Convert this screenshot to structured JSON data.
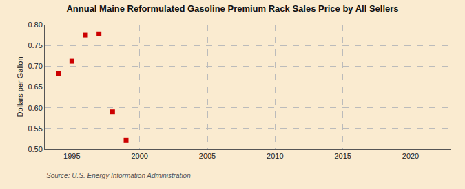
{
  "chart_data": {
    "type": "scatter",
    "title": "Annual Maine Reformulated Gasoline Premium Rack Sales Price by All Sellers",
    "ylabel": "Dollars per Gallon",
    "annotations": [
      "Source: U.S. Energy Information Administration"
    ],
    "x": [
      1994,
      1995,
      1996,
      1997,
      1998,
      1999
    ],
    "values": [
      0.683,
      0.712,
      0.775,
      0.778,
      0.59,
      0.521
    ],
    "color": "#cc0000",
    "marker": "square",
    "xlim": [
      1993,
      2023
    ],
    "ylim": [
      0.5,
      0.8
    ],
    "xticks": [
      1995,
      2000,
      2005,
      2010,
      2015,
      2020
    ],
    "yticks": [
      {
        "value": 0.5,
        "label": "0.50"
      },
      0.55,
      {
        "value": 0.6,
        "label": "0.60"
      },
      0.65,
      {
        "value": 0.7,
        "label": "0.70"
      },
      0.75,
      {
        "value": 0.8,
        "label": "0.80"
      }
    ],
    "grid": true
  }
}
